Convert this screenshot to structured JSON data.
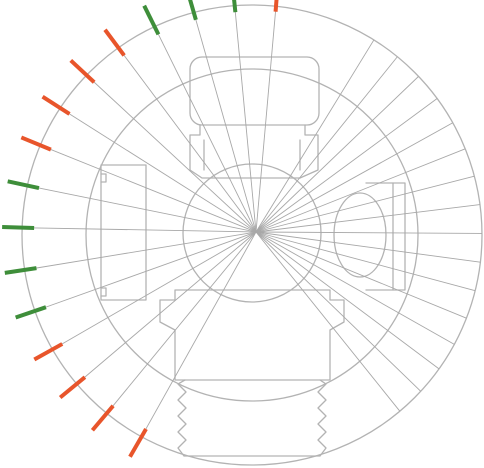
{
  "colors": {
    "background": "#ffffff",
    "outline": "#b3b3b3",
    "ray": "#a8a8a8",
    "tick_orange": "#e8552b",
    "tick_green": "#3e8e3a"
  },
  "ticks": [
    "orange",
    "orange",
    "orange",
    "orange",
    "green",
    "green",
    "green",
    "green",
    "orange",
    "orange",
    "orange",
    "orange",
    "green",
    "green",
    "green",
    "orange"
  ]
}
